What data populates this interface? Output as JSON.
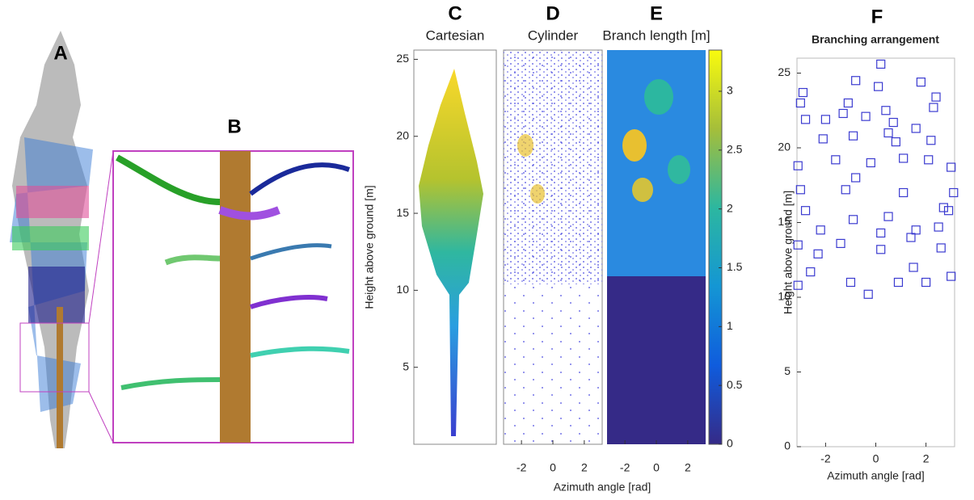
{
  "panel_labels": [
    "A",
    "B"
  ],
  "chart_data": [
    {
      "type": "cloud-panels",
      "labels": [
        "C",
        "D",
        "E"
      ],
      "titles": [
        "Cartesian",
        "Cylinder",
        "Branch length [m]"
      ],
      "y_label": "Height above ground [m]",
      "x_label": "Azimuth angle [rad]",
      "ylim": [
        0,
        25.6
      ],
      "yticks": [
        5,
        10,
        15,
        20,
        25
      ],
      "xlim": [
        -3.14,
        3.14
      ],
      "xticks": [
        -2,
        0,
        2
      ],
      "colorbar": {
        "lim": [
          0,
          3.35
        ],
        "ticks": [
          0,
          0.5,
          1,
          1.5,
          2,
          2.5,
          3
        ]
      }
    },
    {
      "type": "scatter",
      "label": "F",
      "title": "Branching arrangement",
      "x_label": "Azimuth angle [rad]",
      "y_label": "Height above ground [m]",
      "xlim": [
        -3.14,
        3.14
      ],
      "xticks": [
        -2,
        0,
        2
      ],
      "ylim": [
        0,
        26
      ],
      "yticks": [
        0,
        5,
        10,
        15,
        20,
        25
      ],
      "color": "#3b3bd0",
      "x": [
        -3.0,
        -2.9,
        -2.8,
        -3.1,
        -3.0,
        -2.8,
        -3.1,
        -3.1,
        -2.6,
        -2.3,
        -2.2,
        -2.1,
        -2.0,
        -1.6,
        -1.3,
        -1.1,
        -0.8,
        -0.9,
        -0.8,
        -1.2,
        -0.9,
        -1.4,
        -1.0,
        -0.4,
        -0.2,
        -0.3,
        0.1,
        0.2,
        0.4,
        0.5,
        0.7,
        0.2,
        0.2,
        0.5,
        0.8,
        1.1,
        1.1,
        0.9,
        1.4,
        1.6,
        1.5,
        1.6,
        1.8,
        2.1,
        2.2,
        2.4,
        2.3,
        2.5,
        2.7,
        2.6,
        2.0,
        3.0,
        3.1,
        2.9,
        3.0
      ],
      "y": [
        23.0,
        23.7,
        21.9,
        18.8,
        17.2,
        15.8,
        13.5,
        10.8,
        11.7,
        12.9,
        14.5,
        20.6,
        21.9,
        19.2,
        22.3,
        23.0,
        24.5,
        20.8,
        18.0,
        17.2,
        15.2,
        13.6,
        11.0,
        22.1,
        19.0,
        10.2,
        24.1,
        25.6,
        22.5,
        21.0,
        21.7,
        14.3,
        13.2,
        15.4,
        20.4,
        19.3,
        17.0,
        11.0,
        14.0,
        14.5,
        12.0,
        21.3,
        24.4,
        19.2,
        20.5,
        23.4,
        22.7,
        14.7,
        16.0,
        13.3,
        11.0,
        18.7,
        17.0,
        15.8,
        11.4
      ]
    }
  ]
}
